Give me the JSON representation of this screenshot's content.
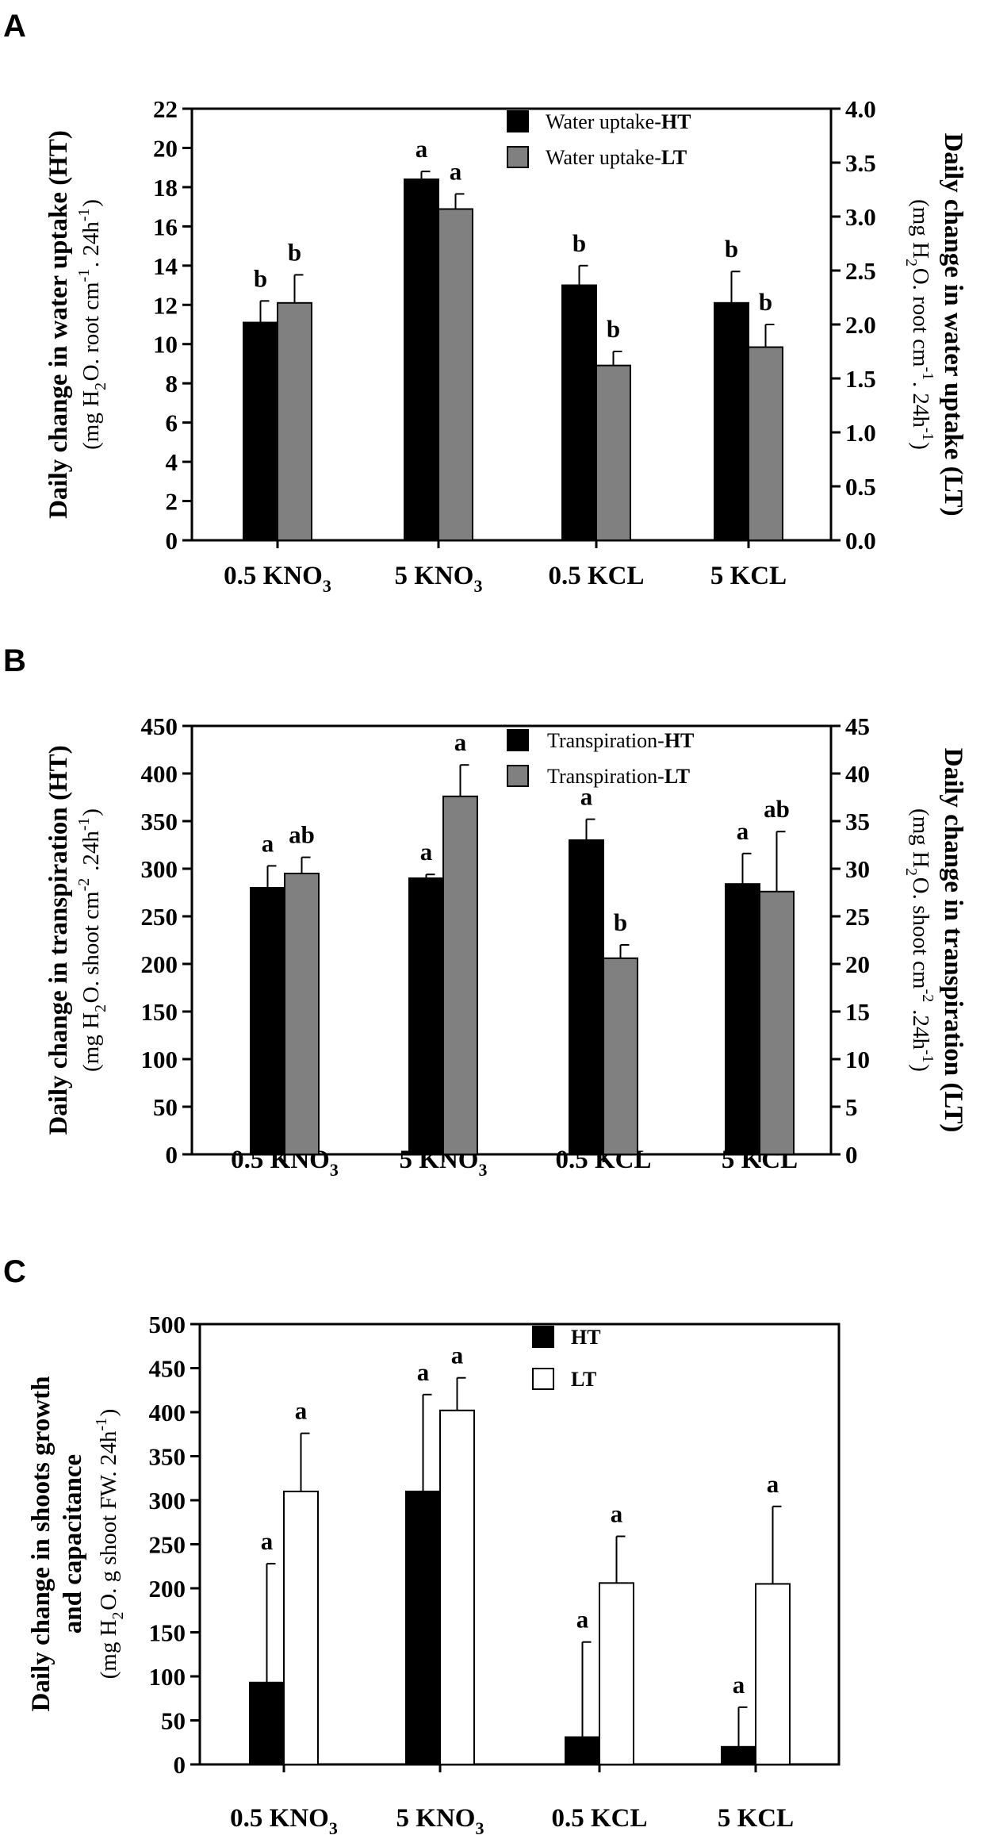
{
  "chart_data": [
    {
      "panel": "A",
      "type": "bar",
      "categories": [
        [
          "0.5 KNO",
          "3"
        ],
        [
          "5 KNO",
          "3"
        ],
        [
          "0.5 KCL",
          ""
        ],
        [
          "5 KCL",
          ""
        ]
      ],
      "series": [
        {
          "name": "Water uptake-HT",
          "prefix": "Water uptake-",
          "suffix": "HT",
          "axis": "left",
          "color": "#000000",
          "values": [
            11.1,
            18.4,
            13.0,
            12.1
          ],
          "errors": [
            1.1,
            0.4,
            1.0,
            1.6
          ],
          "labels": [
            "b",
            "a",
            "b",
            "b"
          ]
        },
        {
          "name": "Water uptake-LT",
          "prefix": "Water uptake-",
          "suffix": "LT",
          "axis": "right",
          "color": "#808080",
          "values": [
            2.2,
            3.07,
            1.62,
            1.79
          ],
          "errors": [
            0.26,
            0.14,
            0.13,
            0.21
          ],
          "labels": [
            "b",
            "a",
            "b",
            "b"
          ]
        }
      ],
      "yleft": {
        "min": 0,
        "max": 22,
        "ticks": [
          "0",
          "2",
          "4",
          "6",
          "8",
          "10",
          "12",
          "14",
          "16",
          "18",
          "20",
          "22"
        ]
      },
      "yright": {
        "min": 0,
        "max": 4,
        "ticks": [
          "0.0",
          "0.5",
          "1.0",
          "1.5",
          "2.0",
          "2.5",
          "3.0",
          "3.5",
          "4.0"
        ]
      },
      "ylabel_left": {
        "title": "Daily change in water uptake (HT)",
        "sub": [
          "(mg H",
          "2",
          "O. root cm",
          "-1",
          ". 24h",
          "-1",
          ")"
        ]
      },
      "ylabel_right": {
        "title": "Daily change in water uptake (LT)",
        "sub": [
          "(mg H",
          "2",
          "O. root cm",
          "-1",
          ". 24h",
          "-1",
          ")"
        ]
      },
      "legend_position": "top-right"
    },
    {
      "panel": "B",
      "type": "bar",
      "categories": [
        [
          "0.5 KNO",
          "3"
        ],
        [
          "5 KNO",
          "3"
        ],
        [
          "0.5 KCL",
          ""
        ],
        [
          "5 KCL",
          ""
        ]
      ],
      "series": [
        {
          "name": "Transpiration-HT",
          "prefix": "Transpiration-",
          "suffix": "HT",
          "axis": "left",
          "color": "#000000",
          "values": [
            280,
            290,
            330,
            284
          ],
          "errors": [
            23,
            4,
            22,
            32
          ],
          "labels": [
            "a",
            "a",
            "a",
            "a"
          ]
        },
        {
          "name": "Transpiration-LT",
          "prefix": "Transpiration-",
          "suffix": "LT",
          "axis": "right",
          "color": "#808080",
          "values": [
            29.5,
            37.6,
            20.6,
            27.6
          ],
          "errors": [
            1.7,
            3.3,
            1.4,
            6.3
          ],
          "labels": [
            "ab",
            "a",
            "b",
            "ab"
          ]
        }
      ],
      "yleft": {
        "min": 0,
        "max": 450,
        "ticks": [
          "0",
          "50",
          "100",
          "150",
          "200",
          "250",
          "300",
          "350",
          "400",
          "450"
        ]
      },
      "yright": {
        "min": 0,
        "max": 45,
        "ticks": [
          "0",
          "5",
          "10",
          "15",
          "20",
          "25",
          "30",
          "35",
          "40",
          "45"
        ]
      },
      "ylabel_left": {
        "title": "Daily change in transpiration (HT)",
        "sub": [
          "(mg H",
          "2",
          "O. shoot cm",
          "-2",
          " .24h",
          "-1",
          ")"
        ]
      },
      "ylabel_right": {
        "title": "Daily change in transpiration (LT)",
        "sub": [
          "(mg H",
          "2",
          "O. shoot cm",
          "-2",
          " .24h",
          "-1",
          ")"
        ]
      },
      "legend_position": "top-right"
    },
    {
      "panel": "C",
      "type": "bar",
      "categories": [
        [
          "0.5 KNO",
          "3"
        ],
        [
          "5 KNO",
          "3"
        ],
        [
          "0.5 KCL",
          ""
        ],
        [
          "5 KCL",
          ""
        ]
      ],
      "series": [
        {
          "name": "HT",
          "prefix": "",
          "suffix": "HT",
          "axis": "left",
          "color": "#000000",
          "values": [
            93,
            310,
            31,
            20
          ],
          "errors": [
            135,
            110,
            108,
            45
          ],
          "labels": [
            "a",
            "a",
            "a",
            "a"
          ]
        },
        {
          "name": "LT",
          "prefix": "",
          "suffix": "LT",
          "axis": "left",
          "color": "#ffffff",
          "values": [
            310,
            402,
            206,
            205
          ],
          "errors": [
            66,
            37,
            53,
            88
          ],
          "labels": [
            "a",
            "a",
            "a",
            "a"
          ]
        }
      ],
      "yleft": {
        "min": 0,
        "max": 500,
        "ticks": [
          "0",
          "50",
          "100",
          "150",
          "200",
          "250",
          "300",
          "350",
          "400",
          "450",
          "500"
        ]
      },
      "ylabel_left": {
        "title": "Daily change in shoots growth",
        "title2": "and capacitance",
        "sub": [
          "(mg H",
          "2",
          "O. g shoot FW. 24h",
          "-1",
          ")"
        ]
      },
      "legend_position": "top-center"
    }
  ]
}
